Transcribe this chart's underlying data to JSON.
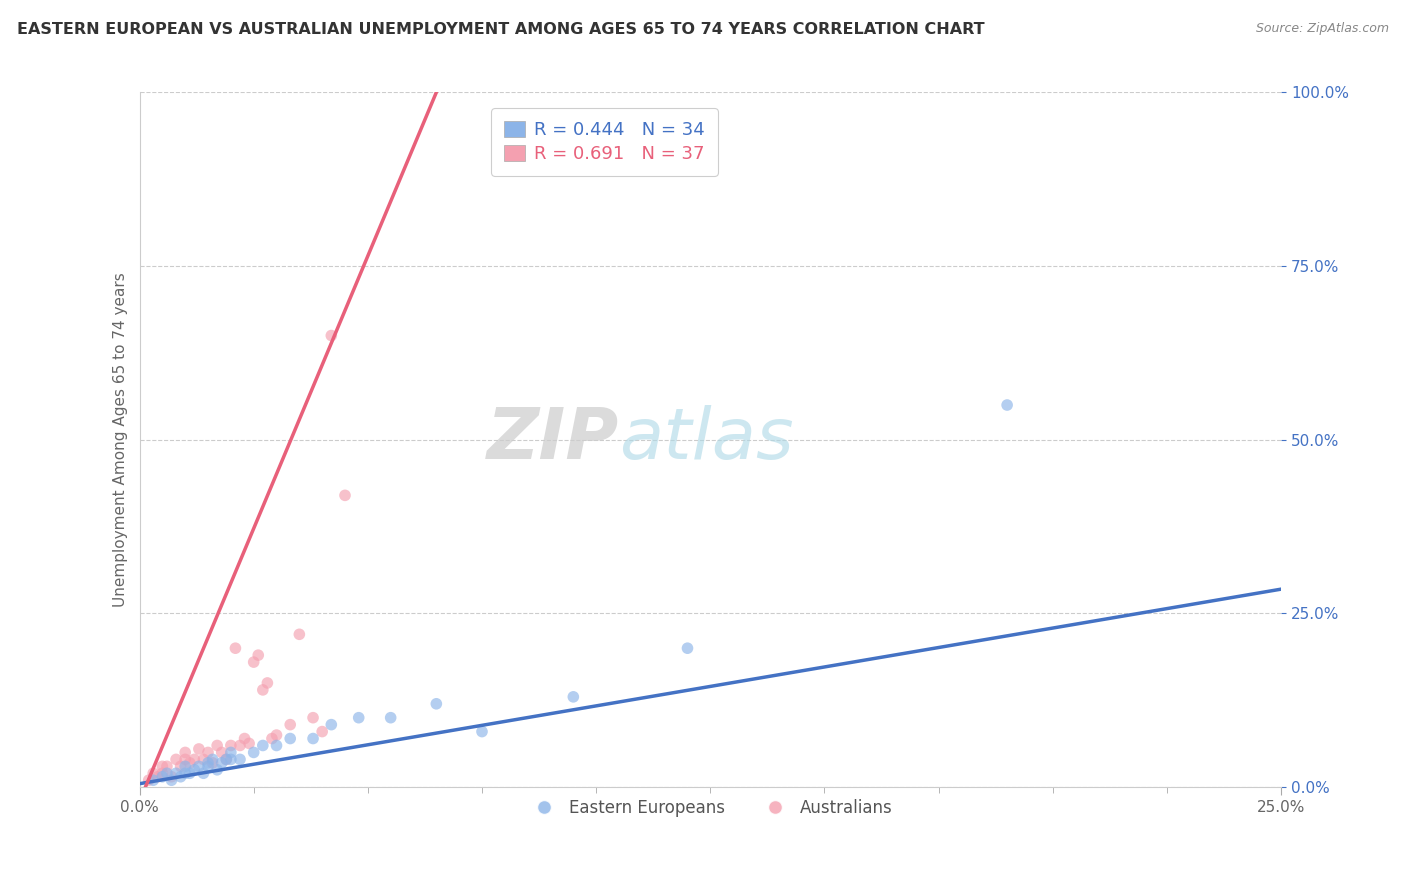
{
  "title": "EASTERN EUROPEAN VS AUSTRALIAN UNEMPLOYMENT AMONG AGES 65 TO 74 YEARS CORRELATION CHART",
  "source": "Source: ZipAtlas.com",
  "ylabel": "Unemployment Among Ages 65 to 74 years",
  "xlim": [
    0.0,
    0.25
  ],
  "ylim": [
    0.0,
    1.0
  ],
  "blue_R": 0.444,
  "blue_N": 34,
  "pink_R": 0.691,
  "pink_N": 37,
  "blue_color": "#8CB4E8",
  "pink_color": "#F4A0B0",
  "blue_line_color": "#4472C4",
  "pink_line_color": "#E8607A",
  "blue_text_color": "#4472C4",
  "pink_text_color": "#E8607A",
  "ytick_color": "#4472C4",
  "legend_label_blue": "Eastern Europeans",
  "legend_label_pink": "Australians",
  "watermark_zip": "ZIP",
  "watermark_atlas": "atlas",
  "blue_scatter_x": [
    0.003,
    0.005,
    0.006,
    0.007,
    0.008,
    0.009,
    0.01,
    0.01,
    0.011,
    0.012,
    0.013,
    0.014,
    0.015,
    0.015,
    0.016,
    0.017,
    0.018,
    0.019,
    0.02,
    0.02,
    0.022,
    0.025,
    0.027,
    0.03,
    0.033,
    0.038,
    0.042,
    0.048,
    0.055,
    0.065,
    0.075,
    0.095,
    0.12,
    0.19
  ],
  "blue_scatter_y": [
    0.01,
    0.015,
    0.02,
    0.01,
    0.02,
    0.015,
    0.02,
    0.03,
    0.02,
    0.025,
    0.03,
    0.02,
    0.03,
    0.035,
    0.04,
    0.025,
    0.035,
    0.04,
    0.04,
    0.05,
    0.04,
    0.05,
    0.06,
    0.06,
    0.07,
    0.07,
    0.09,
    0.1,
    0.1,
    0.12,
    0.08,
    0.13,
    0.2,
    0.55
  ],
  "pink_scatter_x": [
    0.002,
    0.003,
    0.004,
    0.005,
    0.005,
    0.006,
    0.007,
    0.008,
    0.009,
    0.01,
    0.01,
    0.011,
    0.012,
    0.013,
    0.014,
    0.015,
    0.016,
    0.017,
    0.018,
    0.019,
    0.02,
    0.021,
    0.022,
    0.023,
    0.024,
    0.025,
    0.026,
    0.027,
    0.028,
    0.029,
    0.03,
    0.033,
    0.035,
    0.038,
    0.04,
    0.042,
    0.045
  ],
  "pink_scatter_y": [
    0.01,
    0.02,
    0.015,
    0.03,
    0.02,
    0.03,
    0.015,
    0.04,
    0.03,
    0.04,
    0.05,
    0.035,
    0.04,
    0.055,
    0.04,
    0.05,
    0.035,
    0.06,
    0.05,
    0.04,
    0.06,
    0.2,
    0.06,
    0.07,
    0.063,
    0.18,
    0.19,
    0.14,
    0.15,
    0.07,
    0.075,
    0.09,
    0.22,
    0.1,
    0.08,
    0.65,
    0.42
  ],
  "blue_line_x0": 0.0,
  "blue_line_y0": 0.005,
  "blue_line_x1": 0.25,
  "blue_line_y1": 0.285,
  "pink_line_x0": 0.0,
  "pink_line_y0": -0.02,
  "pink_line_x1": 0.065,
  "pink_line_y1": 1.0
}
